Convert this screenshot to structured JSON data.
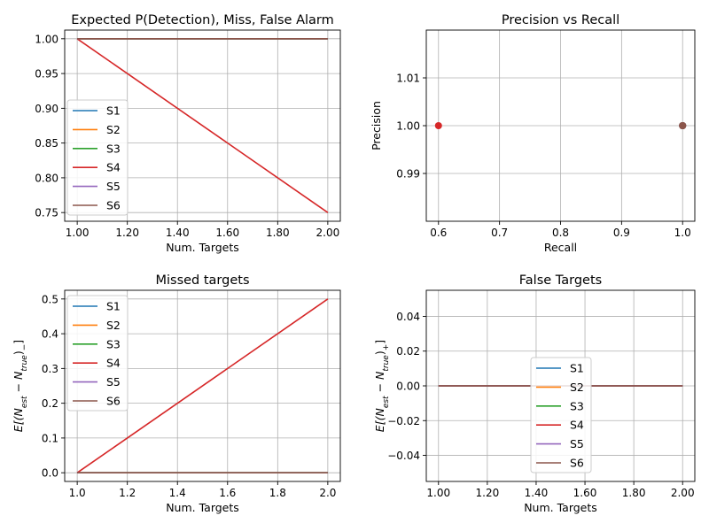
{
  "series_colors": {
    "S1": "#1f77b4",
    "S2": "#ff7f0e",
    "S3": "#2ca02c",
    "S4": "#d62728",
    "S5": "#9467bd",
    "S6": "#8c564b"
  },
  "chart_data": [
    {
      "id": "detection",
      "type": "line",
      "title": "Expected P(Detection), Miss, False Alarm",
      "xlabel": "Num. Targets",
      "ylabel": "",
      "xlim": [
        0.95,
        2.05
      ],
      "ylim": [
        0.7375,
        1.0125
      ],
      "xticks": [
        1.0,
        1.2,
        1.4,
        1.6,
        1.8,
        2.0
      ],
      "yticks": [
        0.75,
        0.8,
        0.85,
        0.9,
        0.95,
        1.0
      ],
      "tick_decimals": 2,
      "grid": true,
      "legend_position": "center-left",
      "series": [
        {
          "name": "S1",
          "x": [
            1,
            2
          ],
          "y": [
            1.0,
            1.0
          ]
        },
        {
          "name": "S2",
          "x": [
            1,
            2
          ],
          "y": [
            1.0,
            1.0
          ]
        },
        {
          "name": "S3",
          "x": [
            1,
            2
          ],
          "y": [
            1.0,
            1.0
          ]
        },
        {
          "name": "S4",
          "x": [
            1,
            2
          ],
          "y": [
            1.0,
            0.75
          ]
        },
        {
          "name": "S5",
          "x": [
            1,
            2
          ],
          "y": [
            1.0,
            1.0
          ]
        },
        {
          "name": "S6",
          "x": [
            1,
            2
          ],
          "y": [
            1.0,
            1.0
          ]
        }
      ]
    },
    {
      "id": "precision-recall",
      "type": "scatter",
      "title": "Precision vs Recall",
      "xlabel": "Recall",
      "ylabel": "Precision",
      "xlim": [
        0.58,
        1.02
      ],
      "ylim": [
        0.98,
        1.02
      ],
      "xticks": [
        0.6,
        0.7,
        0.8,
        0.9,
        1.0
      ],
      "yticks": [
        0.99,
        1.0,
        1.01
      ],
      "tick_decimals_x": 1,
      "tick_decimals_y": 2,
      "grid": true,
      "series": [
        {
          "name": "S1",
          "x": [
            1.0,
            1.0
          ],
          "y": [
            1.0,
            1.0
          ]
        },
        {
          "name": "S2",
          "x": [
            1.0,
            1.0
          ],
          "y": [
            1.0,
            1.0
          ]
        },
        {
          "name": "S3",
          "x": [
            1.0,
            1.0
          ],
          "y": [
            1.0,
            1.0
          ]
        },
        {
          "name": "S4",
          "x": [
            1.0,
            0.6
          ],
          "y": [
            1.0,
            1.0
          ]
        },
        {
          "name": "S5",
          "x": [
            1.0,
            1.0
          ],
          "y": [
            1.0,
            1.0
          ]
        },
        {
          "name": "S6",
          "x": [
            1.0,
            1.0
          ],
          "y": [
            1.0,
            1.0
          ]
        }
      ]
    },
    {
      "id": "missed",
      "type": "line",
      "title": "Missed targets",
      "xlabel": "Num. Targets",
      "ylabel_parts": [
        "E[(N",
        "est",
        " − N",
        "true",
        ")",
        "−",
        "]"
      ],
      "xlim": [
        0.95,
        2.05
      ],
      "ylim": [
        -0.025,
        0.525
      ],
      "xticks": [
        1.0,
        1.2,
        1.4,
        1.6,
        1.8,
        2.0
      ],
      "yticks": [
        0.0,
        0.1,
        0.2,
        0.3,
        0.4,
        0.5
      ],
      "tick_decimals": 1,
      "grid": true,
      "legend_position": "upper-left",
      "series": [
        {
          "name": "S1",
          "x": [
            1,
            2
          ],
          "y": [
            0.0,
            0.0
          ]
        },
        {
          "name": "S2",
          "x": [
            1,
            2
          ],
          "y": [
            0.0,
            0.0
          ]
        },
        {
          "name": "S3",
          "x": [
            1,
            2
          ],
          "y": [
            0.0,
            0.0
          ]
        },
        {
          "name": "S4",
          "x": [
            1,
            2
          ],
          "y": [
            0.0,
            0.5
          ]
        },
        {
          "name": "S5",
          "x": [
            1,
            2
          ],
          "y": [
            0.0,
            0.0
          ]
        },
        {
          "name": "S6",
          "x": [
            1,
            2
          ],
          "y": [
            0.0,
            0.0
          ]
        }
      ]
    },
    {
      "id": "false",
      "type": "line",
      "title": "False Targets",
      "xlabel": "Num. Targets",
      "ylabel_parts": [
        "E[(N",
        "est",
        " − N",
        "true",
        ")",
        "+",
        "]"
      ],
      "xlim": [
        0.95,
        2.05
      ],
      "ylim": [
        -0.055,
        0.055
      ],
      "xticks": [
        1.0,
        1.2,
        1.4,
        1.6,
        1.8,
        2.0
      ],
      "yticks": [
        -0.04,
        -0.02,
        0.0,
        0.02,
        0.04
      ],
      "tick_decimals": 2,
      "grid": true,
      "legend_position": "lower-center",
      "series": [
        {
          "name": "S1",
          "x": [
            1,
            2
          ],
          "y": [
            0.0,
            0.0
          ]
        },
        {
          "name": "S2",
          "x": [
            1,
            2
          ],
          "y": [
            0.0,
            0.0
          ]
        },
        {
          "name": "S3",
          "x": [
            1,
            2
          ],
          "y": [
            0.0,
            0.0
          ]
        },
        {
          "name": "S4",
          "x": [
            1,
            2
          ],
          "y": [
            0.0,
            0.0
          ]
        },
        {
          "name": "S5",
          "x": [
            1,
            2
          ],
          "y": [
            0.0,
            0.0
          ]
        },
        {
          "name": "S6",
          "x": [
            1,
            2
          ],
          "y": [
            0.0,
            0.0
          ]
        }
      ]
    }
  ]
}
